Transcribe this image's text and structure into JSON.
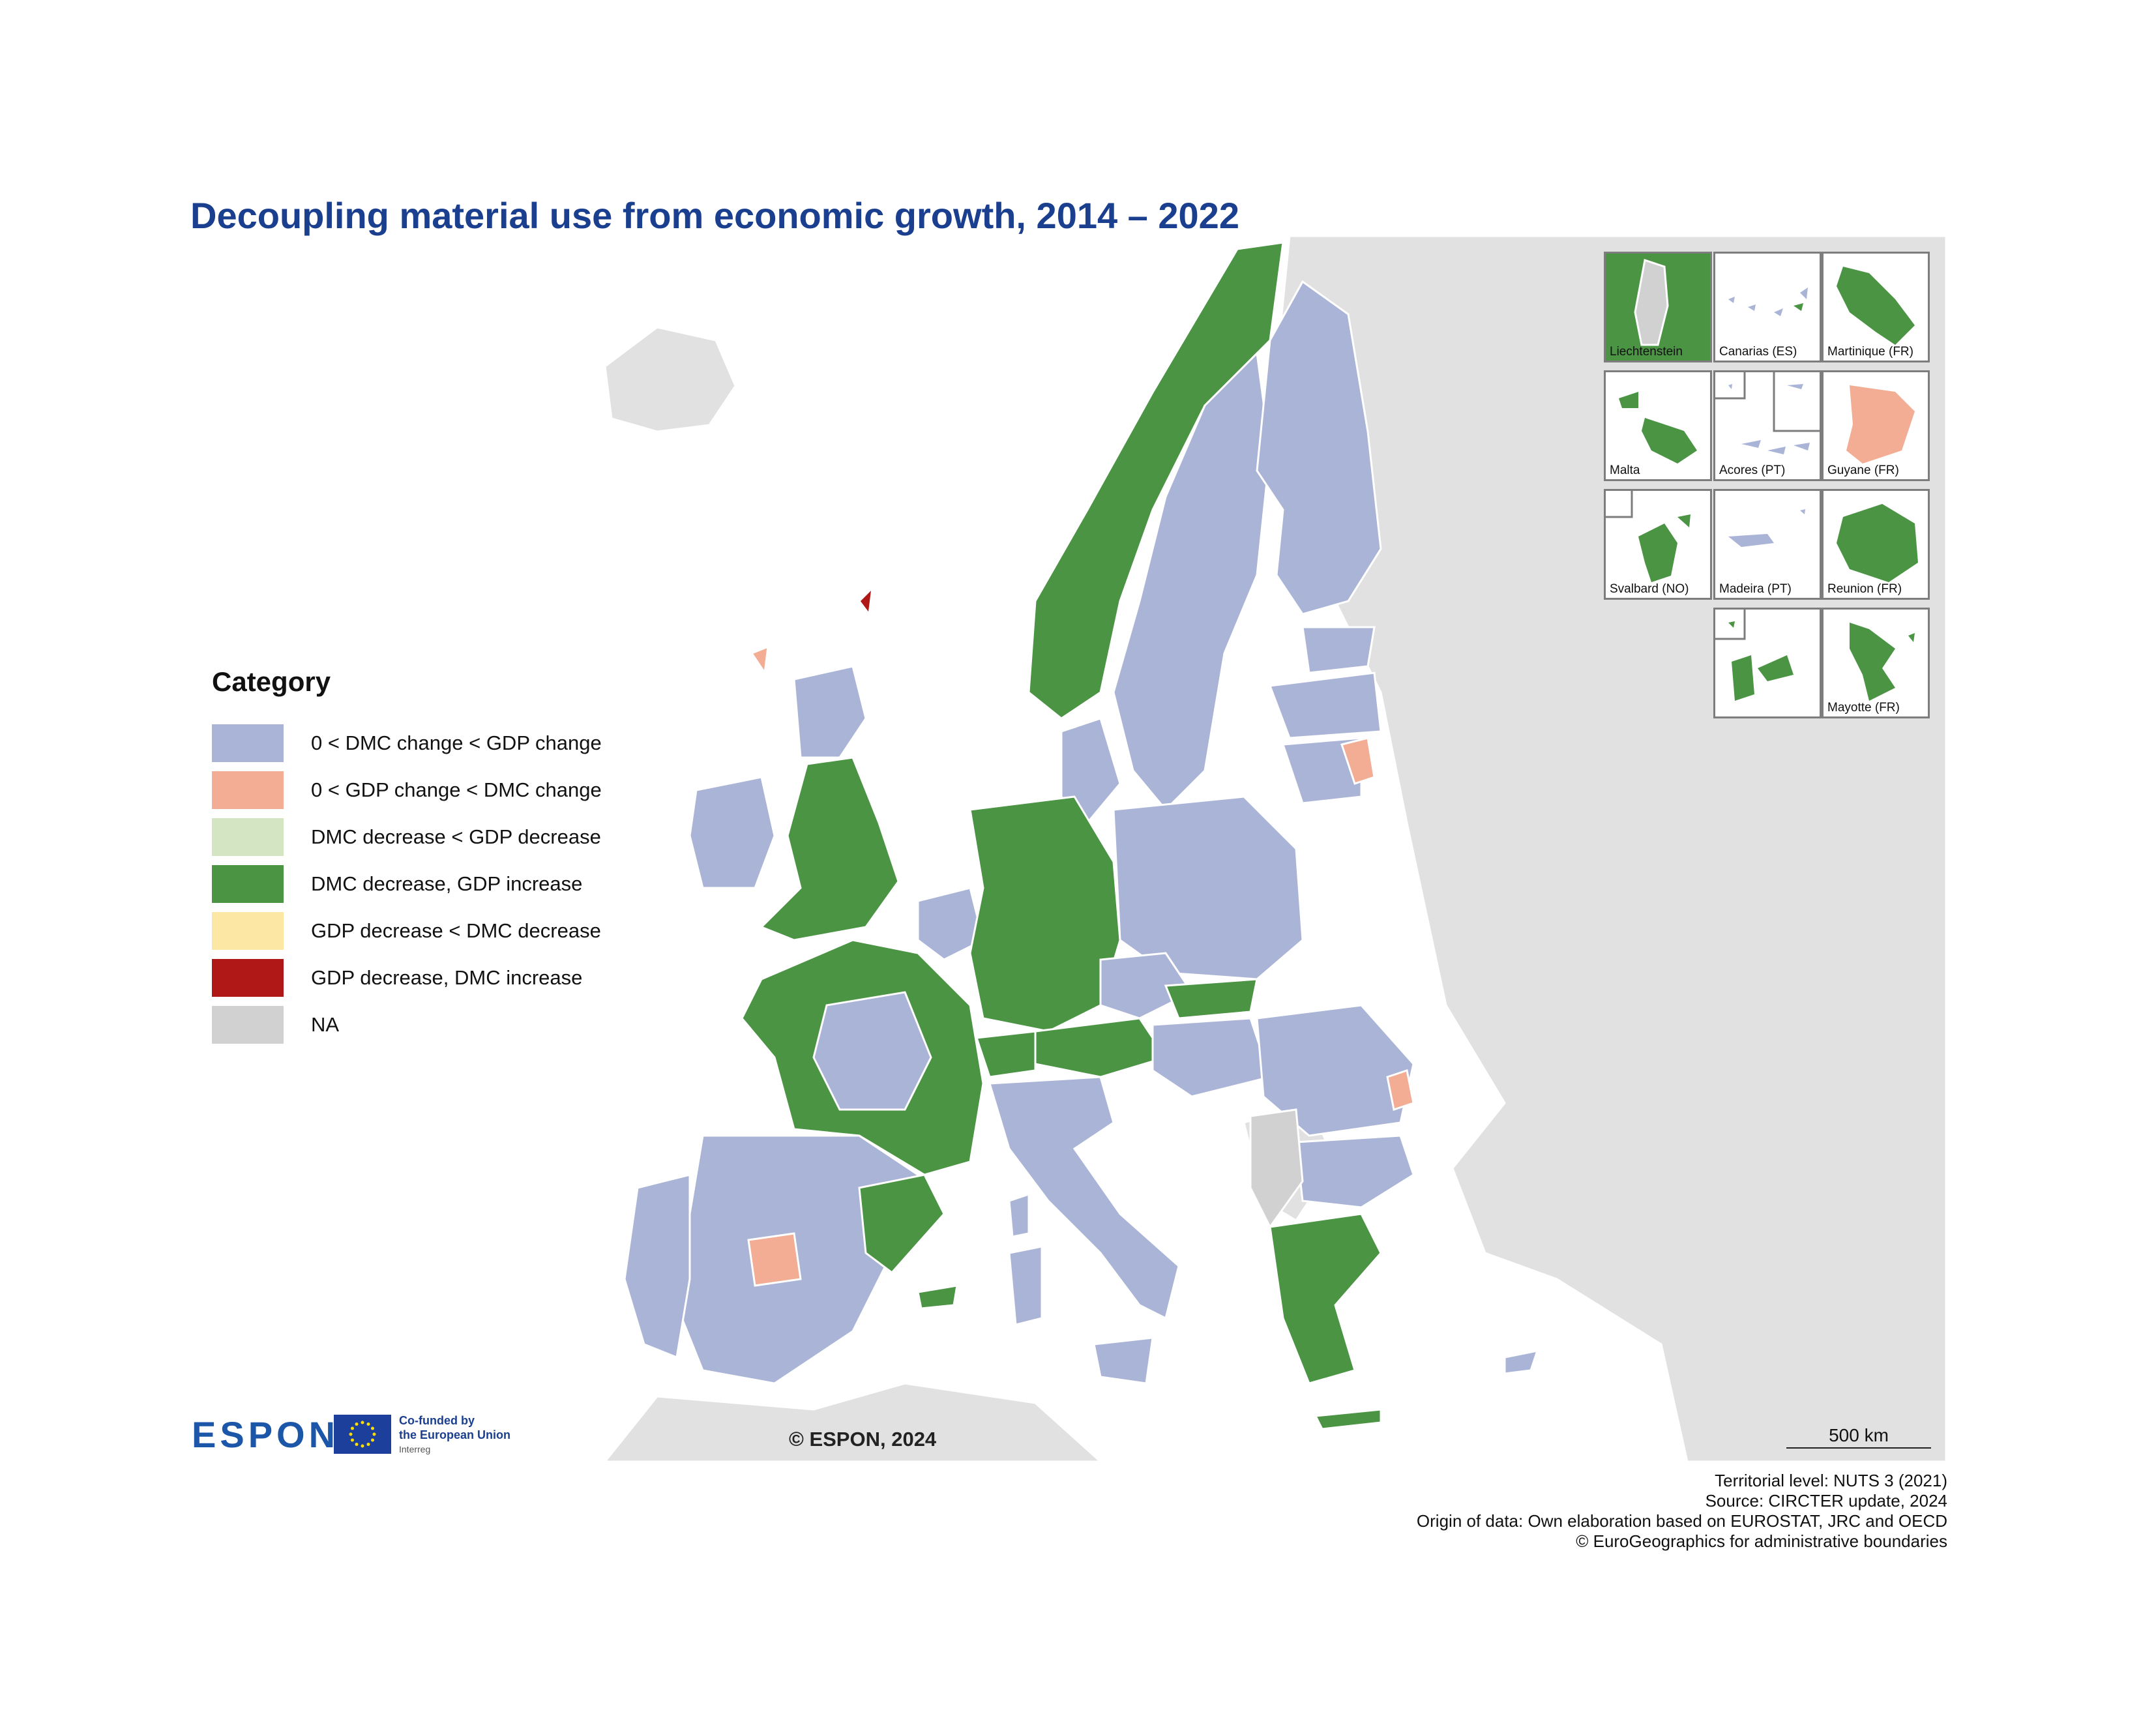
{
  "title": "Decoupling material use from economic growth, 2014 – 2022",
  "legend": {
    "title": "Category",
    "items": [
      {
        "label": "0 < DMC change < GDP change",
        "color": "#aab4d6"
      },
      {
        "label": "0 < GDP change < DMC change",
        "color": "#f2ad94"
      },
      {
        "label": "DMC decrease < GDP decrease",
        "color": "#d4e5c3"
      },
      {
        "label": "DMC decrease, GDP increase",
        "color": "#4a9444"
      },
      {
        "label": "GDP decrease < DMC decrease",
        "color": "#fde7a4"
      },
      {
        "label": "GDP decrease, DMC increase",
        "color": "#b01818"
      },
      {
        "label": "NA",
        "color": "#d1d1d1"
      }
    ]
  },
  "insets": [
    {
      "label": "Liechtenstein"
    },
    {
      "label": "Canarias (ES)"
    },
    {
      "label": "Martinique (FR)"
    },
    {
      "label": "Malta"
    },
    {
      "label": "Acores (PT)"
    },
    {
      "label": "Guyane (FR)"
    },
    {
      "label": "Svalbard (NO)"
    },
    {
      "label": "Madeira (PT)"
    },
    {
      "label": "Reunion (FR)"
    },
    {
      "label": ""
    },
    {
      "label": "Mayotte (FR)"
    }
  ],
  "scale": {
    "label": "500 km"
  },
  "map_copyright": "© ESPON, 2024",
  "branding": {
    "espon": "ESPON",
    "eu_line1": "Co-funded by",
    "eu_line2": "the European Union",
    "eu_line3": "Interreg"
  },
  "footer": {
    "line1": "Territorial level: NUTS 3 (2021)",
    "line2": "Source: CIRCTER update, 2024",
    "line3": "Origin of data: Own elaboration based on EUROSTAT, JRC and OECD",
    "line4": "© EuroGeographics for administrative boundaries"
  },
  "colors": {
    "background_land": "#e1e1e1",
    "sea": "#ffffff",
    "title": "#1b3f8f"
  }
}
